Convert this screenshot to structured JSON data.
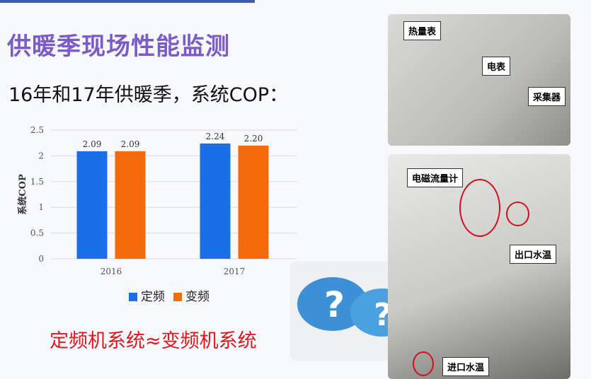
{
  "slide": {
    "title": "供暖季现场性能监测",
    "subtitle": "16年和17年供暖季，系统COP：",
    "conclusion": "定频机系统≈变频机系统"
  },
  "photos": {
    "labels": [
      "热量表",
      "电表",
      "采集器",
      "电磁流量计",
      "出口水温",
      "进口水温"
    ]
  },
  "chart_data": {
    "type": "bar",
    "categories": [
      "2016",
      "2017"
    ],
    "series": [
      {
        "name": "定频",
        "values": [
          2.09,
          2.24
        ],
        "color": "#1a6fe8"
      },
      {
        "name": "变频",
        "values": [
          2.09,
          2.2
        ],
        "color": "#f56a0a"
      }
    ],
    "data_labels": [
      [
        "2.09",
        "2.24"
      ],
      [
        "2.09",
        "2.20"
      ]
    ],
    "ylabel": "系统COP",
    "xlabel": "",
    "ylim": [
      0,
      2.5
    ],
    "yticks": [
      "0",
      "0.5",
      "1",
      "1.5",
      "2",
      "2.5"
    ],
    "grid": true,
    "legend": "bottom"
  }
}
